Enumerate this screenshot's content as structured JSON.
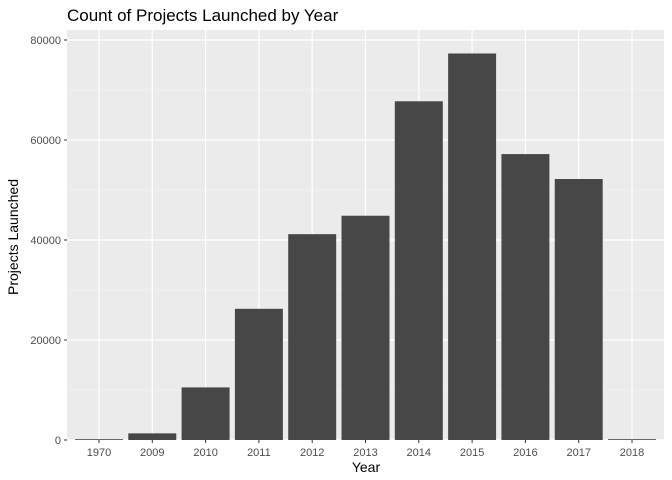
{
  "chart_data": {
    "type": "bar",
    "title": "Count of Projects Launched by Year",
    "xlabel": "Year",
    "ylabel": "Projects Launched",
    "categories": [
      "1970",
      "2009",
      "2010",
      "2011",
      "2012",
      "2013",
      "2014",
      "2015",
      "2016",
      "2017",
      "2018"
    ],
    "values": [
      7,
      1329,
      10519,
      26237,
      41165,
      44851,
      67745,
      77300,
      57184,
      52200,
      124
    ],
    "ylim": [
      0,
      82000
    ],
    "yticks": [
      0,
      20000,
      40000,
      60000,
      80000
    ],
    "ytick_labels": [
      "0",
      "20000",
      "40000",
      "60000",
      "80000"
    ],
    "grid": true,
    "legend": "none",
    "colors": {
      "panel_background": "#ebebeb",
      "grid_line": "#ffffff",
      "bar_fill": "#474747",
      "tick_text": "#4d4d4d",
      "tick_mark": "#333333"
    }
  }
}
